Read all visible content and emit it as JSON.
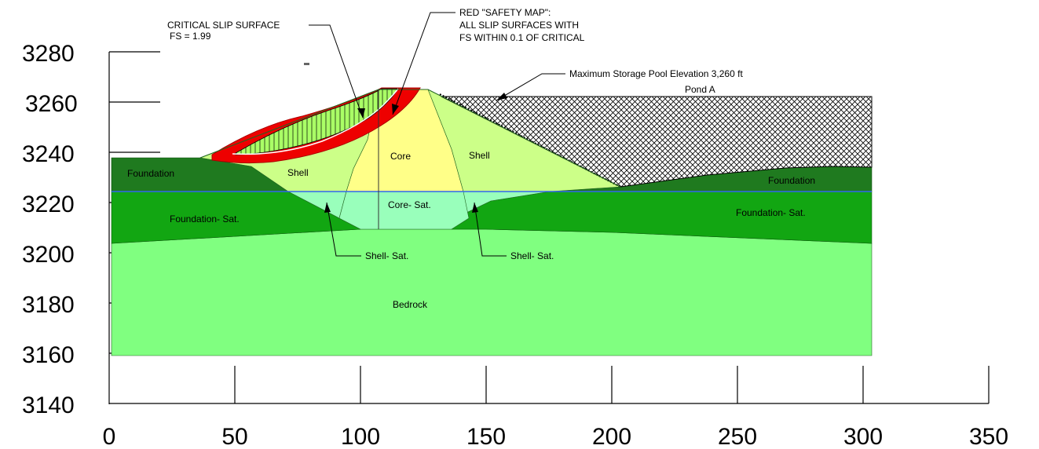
{
  "y_axis": {
    "tick_labels": [
      "3280",
      "3260",
      "3240",
      "3220",
      "3200",
      "3180",
      "3160",
      "3140"
    ]
  },
  "x_axis": {
    "tick_labels": [
      "0",
      "50",
      "100",
      "150",
      "200",
      "250",
      "300",
      "350"
    ]
  },
  "zones": {
    "foundation_left": "Foundation",
    "shell_left": "Shell",
    "core": "Core",
    "shell_right": "Shell",
    "foundation_right": "Foundation",
    "foundation_sat_left": "Foundation- Sat.",
    "core_sat": "Core- Sat.",
    "foundation_sat_right": "Foundation- Sat.",
    "bedrock": "Bedrock",
    "pond": "Pond A"
  },
  "annotations": {
    "critical_slip_line1": "CRITICAL SLIP SURFACE",
    "critical_slip_line2": "FS = 1.99",
    "safety_map_line1": "RED \"SAFETY MAP\":",
    "safety_map_line2": "ALL SLIP SURFACES WITH",
    "safety_map_line3": "FS WITHIN 0.1 OF CRITICAL",
    "pool_elevation": "Maximum Storage Pool Elevation 3,260 ft",
    "shell_sat_left": "Shell- Sat.",
    "shell_sat_right": "Shell- Sat."
  },
  "colors": {
    "bedrock": "#80ff80",
    "foundation": "#1f7a1f",
    "foundation_sat": "#12a612",
    "shell": "#ccff88",
    "core": "#ffff88",
    "core_sat": "#99ffbb",
    "slip_zone": "#ee0000",
    "slip_hatch": "#aaff66",
    "water_line": "#3366ee"
  }
}
